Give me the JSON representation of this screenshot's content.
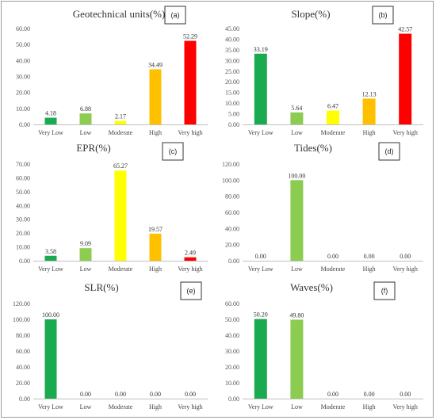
{
  "colors": {
    "Very Low": "#1aaa50",
    "Low": "#8ccc50",
    "Moderate": "#ffff00",
    "High": "#ffc000",
    "Very high": "#ff0000"
  },
  "chart_data": [
    {
      "type": "bar",
      "title": "Geotechnical units(%)",
      "tag": "(a)",
      "categories": [
        "Very Low",
        "Low",
        "Moderate",
        "High",
        "Very high"
      ],
      "values": [
        4.18,
        6.88,
        2.17,
        34.49,
        52.29
      ],
      "value_labels": [
        "4.18",
        "6.88",
        "2.17",
        "34.49",
        "52.29"
      ],
      "yticks": [
        "0.00",
        "10.00",
        "20.00",
        "30.00",
        "40.00",
        "50.00",
        "60.00"
      ],
      "ylim": [
        0,
        60
      ],
      "grid": false
    },
    {
      "type": "bar",
      "title": "Slope(%)",
      "tag": "(b)",
      "categories": [
        "Very Low",
        "Low",
        "Moderate",
        "High",
        "Very high"
      ],
      "values": [
        33.19,
        5.64,
        6.47,
        12.13,
        42.57
      ],
      "value_labels": [
        "33.19",
        "5.64",
        "6.47",
        "12.13",
        "42.57"
      ],
      "yticks": [
        "0.00",
        "5.00",
        "10.00",
        "15.00",
        "20.00",
        "25.00",
        "30.00",
        "35.00",
        "40.00",
        "45.00"
      ],
      "ylim": [
        0,
        45
      ],
      "grid": false
    },
    {
      "type": "bar",
      "title": "EPR(%)",
      "tag": "(c)",
      "categories": [
        "Very Low",
        "Low",
        "Moderate",
        "High",
        "Very high"
      ],
      "values": [
        3.58,
        9.09,
        65.27,
        19.57,
        2.49
      ],
      "value_labels": [
        "3.58",
        "9.09",
        "65.27",
        "19.57",
        "2.49"
      ],
      "yticks": [
        "0.00",
        "10.00",
        "20.00",
        "30.00",
        "40.00",
        "50.00",
        "60.00",
        "70.00"
      ],
      "ylim": [
        0,
        70
      ],
      "grid": false
    },
    {
      "type": "bar",
      "title": "Tides(%)",
      "tag": "(d)",
      "categories": [
        "Very Low",
        "Low",
        "Moderate",
        "High",
        "Very high"
      ],
      "values": [
        0,
        100,
        0,
        0,
        0
      ],
      "value_labels": [
        "0.00",
        "100.00",
        "0.00",
        "0.00",
        "0.00"
      ],
      "yticks": [
        "0.00",
        "20.00",
        "40.00",
        "60.00",
        "80.00",
        "100.00",
        "120.00"
      ],
      "ylim": [
        0,
        120
      ],
      "grid": false
    },
    {
      "type": "bar",
      "title": "SLR(%)",
      "tag": "(e)",
      "categories": [
        "Very Low",
        "Low",
        "Moderate",
        "High",
        "Very high"
      ],
      "values": [
        100,
        0,
        0,
        0,
        0
      ],
      "value_labels": [
        "100.00",
        "0.00",
        "0.00",
        "0.00",
        "0.00"
      ],
      "yticks": [
        "0.00",
        "20.00",
        "40.00",
        "60.00",
        "80.00",
        "100.00",
        "120.00"
      ],
      "ylim": [
        0,
        120
      ],
      "grid": false
    },
    {
      "type": "bar",
      "title": "Waves(%)",
      "tag": "(f)",
      "categories": [
        "Very Low",
        "Low",
        "Moderate",
        "High",
        "Very high"
      ],
      "values": [
        50.2,
        49.8,
        0,
        0,
        0
      ],
      "value_labels": [
        "50.20",
        "49.80",
        "0.00",
        "0.00",
        "0.00"
      ],
      "yticks": [
        "0.00",
        "10.00",
        "20.00",
        "30.00",
        "40.00",
        "50.00",
        "60.00"
      ],
      "ylim": [
        0,
        60
      ],
      "grid": false
    }
  ]
}
